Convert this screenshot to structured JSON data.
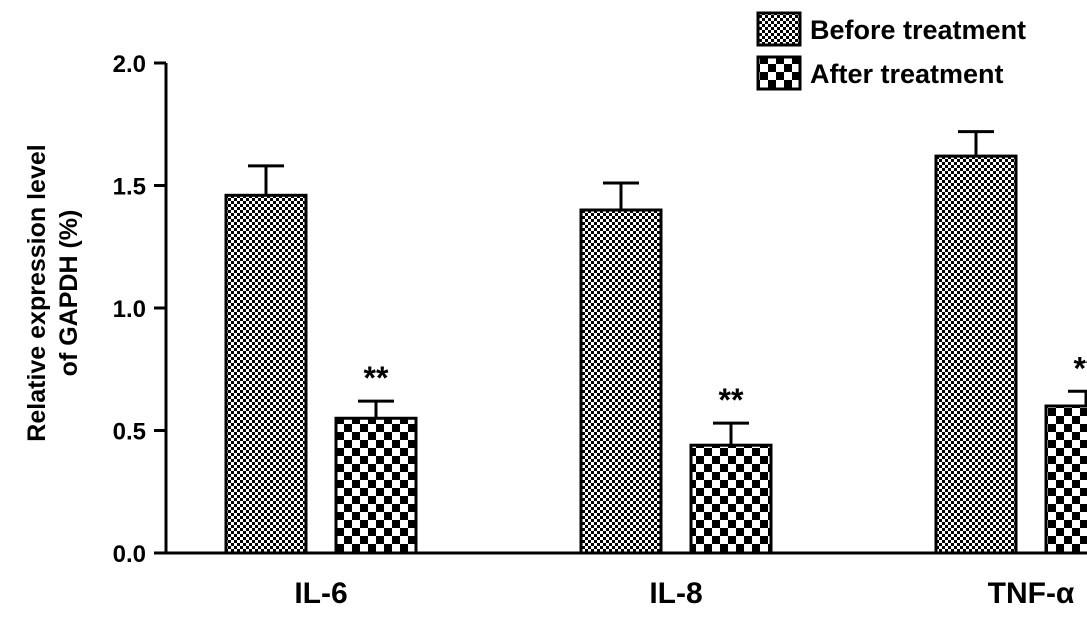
{
  "chart_data": {
    "type": "bar",
    "title": "",
    "xlabel": "",
    "ylabel": [
      "Relative expression level",
      "of GAPDH (%)"
    ],
    "ylim": [
      0,
      2.0
    ],
    "yticks": [
      "0.0",
      "0.5",
      "1.0",
      "1.5",
      "2.0"
    ],
    "categories": [
      "IL-6",
      "IL-8",
      "TNF-α"
    ],
    "series": [
      {
        "name": "Before treatment",
        "pattern": "fine-checker",
        "values": [
          1.46,
          1.4,
          1.62
        ],
        "errors": [
          0.12,
          0.11,
          0.1
        ]
      },
      {
        "name": "After treatment",
        "pattern": "coarse-checker",
        "values": [
          0.55,
          0.44,
          0.6
        ],
        "errors": [
          0.07,
          0.09,
          0.06
        ]
      }
    ],
    "annotations": [
      "**",
      "**",
      "**"
    ],
    "legend": "top-right",
    "grid": false,
    "colors": {
      "bar_dark": "#000000",
      "bar_light": "#ffffff",
      "axis": "#000000"
    }
  }
}
